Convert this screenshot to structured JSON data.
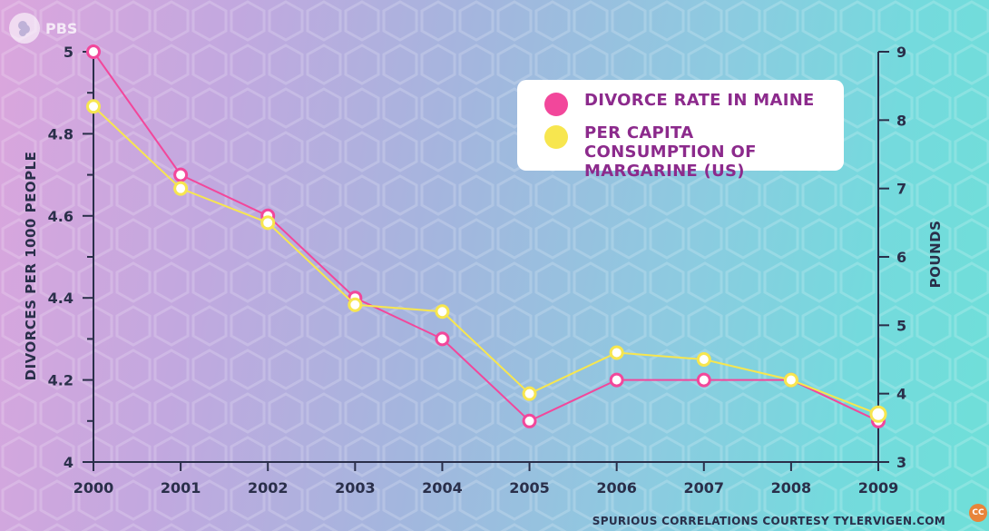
{
  "logo": {
    "text": "PBS",
    "icon": "pbs-head-icon"
  },
  "credit": "SPURIOUS CORRELATIONS COURTESY TYLERVIGEN.COM",
  "cc_badge": "CC",
  "colors": {
    "pink": "#f2479b",
    "yellow": "#f7e64f",
    "axis": "#2a2f4a",
    "legend_text": "#8c2a8c"
  },
  "chart_data": {
    "type": "line",
    "title": "",
    "x": [
      2000,
      2001,
      2002,
      2003,
      2004,
      2005,
      2006,
      2007,
      2008,
      2009
    ],
    "x_tick_labels": [
      "2000",
      "2001",
      "2002",
      "2003",
      "2004",
      "2005",
      "2006",
      "2007",
      "2008",
      "2009"
    ],
    "left_axis": {
      "label": "DIVORCES PER 1000 PEOPLE",
      "ylim": [
        4,
        5
      ],
      "ticks": [
        4,
        4.2,
        4.4,
        4.6,
        4.8,
        5
      ],
      "tick_labels": [
        "4",
        "4.2",
        "4.4",
        "4.6",
        "4.8",
        "5"
      ]
    },
    "right_axis": {
      "label": "POUNDS",
      "ylim": [
        3,
        9
      ],
      "ticks": [
        3,
        4,
        5,
        6,
        7,
        8,
        9
      ],
      "tick_labels": [
        "3",
        "4",
        "5",
        "6",
        "7",
        "8",
        "9"
      ]
    },
    "series": [
      {
        "name": "DIVORCE RATE IN MAINE",
        "axis": "left",
        "color": "#f2479b",
        "values": [
          5.0,
          4.7,
          4.6,
          4.4,
          4.3,
          4.1,
          4.2,
          4.2,
          4.2,
          4.1
        ]
      },
      {
        "name": "PER CAPITA CONSUMPTION OF MARGARINE (US)",
        "axis": "right",
        "color": "#f7e64f",
        "values": [
          8.2,
          7.0,
          6.5,
          5.3,
          5.2,
          4.0,
          4.6,
          4.5,
          4.2,
          3.7
        ]
      }
    ],
    "legend": {
      "position": "top-right",
      "entries": [
        "DIVORCE RATE IN MAINE",
        "PER CAPITA CONSUMPTION OF MARGARINE (US)"
      ]
    }
  }
}
